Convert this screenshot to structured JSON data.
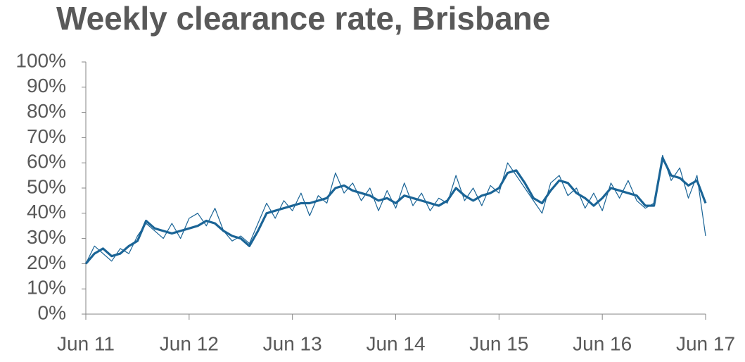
{
  "chart_data": {
    "type": "line",
    "title": "Weekly clearance rate, Brisbane",
    "categories": [
      "Jun 11",
      null,
      null,
      null,
      null,
      null,
      null,
      null,
      null,
      null,
      null,
      null,
      "Jun 12",
      null,
      null,
      null,
      null,
      null,
      null,
      null,
      null,
      null,
      null,
      null,
      "Jun 13",
      null,
      null,
      null,
      null,
      null,
      null,
      null,
      null,
      null,
      null,
      null,
      "Jun 14",
      null,
      null,
      null,
      null,
      null,
      null,
      null,
      null,
      null,
      null,
      null,
      "Jun 15",
      null,
      null,
      null,
      null,
      null,
      null,
      null,
      null,
      null,
      null,
      null,
      "Jun 16",
      null,
      null,
      null,
      null,
      null,
      null,
      null,
      null,
      null,
      null,
      null,
      "Jun 17"
    ],
    "series": [
      {
        "color": "#1a6496",
        "width": 1.2,
        "values": [
          20,
          27,
          24,
          21,
          26,
          24,
          31,
          36,
          33,
          30,
          36,
          30,
          38,
          40,
          35,
          42,
          33,
          29,
          31,
          28,
          36,
          44,
          38,
          45,
          41,
          48,
          39,
          47,
          44,
          56,
          48,
          52,
          45,
          50,
          41,
          49,
          42,
          52,
          43,
          48,
          41,
          46,
          44,
          55,
          45,
          50,
          43,
          51,
          48,
          60,
          55,
          50,
          45,
          40,
          52,
          55,
          47,
          50,
          42,
          48,
          41,
          52,
          46,
          53,
          45,
          42,
          44,
          63,
          53,
          58,
          46,
          55,
          31
        ]
      },
      {
        "color": "#1a6496",
        "width": 3.2,
        "values": [
          20,
          24,
          26,
          23,
          24,
          27,
          29,
          37,
          34,
          33,
          32,
          33,
          34,
          35,
          37,
          36,
          33,
          31,
          30,
          27,
          33,
          40,
          41,
          42,
          43,
          44,
          44,
          45,
          46,
          50,
          51,
          49,
          48,
          47,
          45,
          46,
          44,
          47,
          46,
          45,
          44,
          43,
          45,
          50,
          47,
          45,
          47,
          48,
          50,
          56,
          57,
          52,
          46,
          44,
          49,
          53,
          52,
          48,
          46,
          43,
          46,
          50,
          49,
          48,
          47,
          43,
          43,
          62,
          55,
          54,
          51,
          53,
          44
        ]
      }
    ],
    "ylim": [
      0,
      100
    ],
    "yticks": [
      {
        "value": 0,
        "label": "0%"
      },
      {
        "value": 10,
        "label": "10%"
      },
      {
        "value": 20,
        "label": "20%"
      },
      {
        "value": 30,
        "label": "30%"
      },
      {
        "value": 40,
        "label": "40%"
      },
      {
        "value": 50,
        "label": "50%"
      },
      {
        "value": 60,
        "label": "60%"
      },
      {
        "value": 70,
        "label": "70%"
      },
      {
        "value": 80,
        "label": "80%"
      },
      {
        "value": 90,
        "label": "90%"
      },
      {
        "value": 100,
        "label": "100%"
      }
    ],
    "grid": false
  }
}
